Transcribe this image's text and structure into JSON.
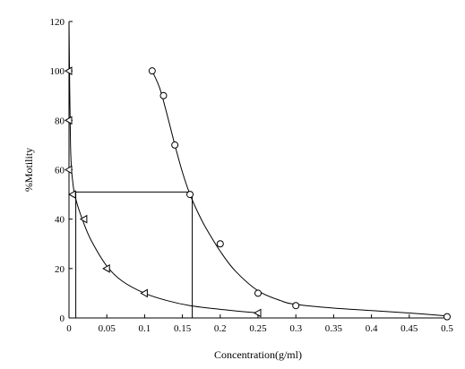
{
  "chart_data": {
    "type": "scatter",
    "xlabel": "Concentration(g/ml)",
    "ylabel": "%Motility",
    "xlim": [
      0,
      0.5
    ],
    "ylim": [
      0,
      120
    ],
    "xticks": [
      0,
      0.05,
      0.1,
      0.15,
      0.2,
      0.25,
      0.3,
      0.35,
      0.4,
      0.45,
      0.5
    ],
    "xtick_labels": [
      "0",
      "0.05",
      "0.1",
      "0.15",
      "0.2",
      "0.25",
      "0.3",
      "0.35",
      "0.4",
      "0.45",
      "0.5"
    ],
    "yticks": [
      0,
      20,
      40,
      60,
      80,
      100,
      120
    ],
    "ytick_labels": [
      "0",
      "20",
      "40",
      "60",
      "80",
      "100",
      "120"
    ],
    "grid": false,
    "series": [
      {
        "marker": "triangle-left",
        "x": [
          0,
          0,
          0,
          0.005,
          0.02,
          0.05,
          0.1,
          0.25
        ],
        "y": [
          100,
          80,
          60,
          50,
          40,
          20,
          10,
          2
        ]
      },
      {
        "marker": "circle",
        "x": [
          0.11,
          0.125,
          0.14,
          0.16,
          0.2,
          0.25,
          0.3,
          0.5
        ],
        "y": [
          100,
          90,
          70,
          50,
          30,
          10,
          5,
          0.5
        ]
      }
    ],
    "curves": [
      {
        "x": [
          0,
          0.002,
          0.005,
          0.01,
          0.02,
          0.03,
          0.05,
          0.07,
          0.1,
          0.13,
          0.16,
          0.2,
          0.25
        ],
        "y": [
          120,
          70,
          55,
          47,
          38,
          31,
          21,
          15,
          10,
          7,
          5,
          3.5,
          2
        ]
      },
      {
        "x": [
          0.11,
          0.12,
          0.13,
          0.14,
          0.15,
          0.16,
          0.17,
          0.18,
          0.2,
          0.22,
          0.25,
          0.28,
          0.3,
          0.35,
          0.4,
          0.45,
          0.5
        ],
        "y": [
          100,
          93,
          82,
          70,
          59,
          50,
          43,
          37,
          27,
          19,
          11,
          7,
          5.5,
          4,
          3,
          2,
          0.8
        ]
      }
    ],
    "reference_lines": [
      {
        "from": [
          0.009,
          51
        ],
        "to": [
          0.163,
          51
        ]
      },
      {
        "from": [
          0.009,
          0
        ],
        "to": [
          0.009,
          51
        ]
      },
      {
        "from": [
          0.163,
          0
        ],
        "to": [
          0.163,
          51
        ]
      }
    ]
  }
}
